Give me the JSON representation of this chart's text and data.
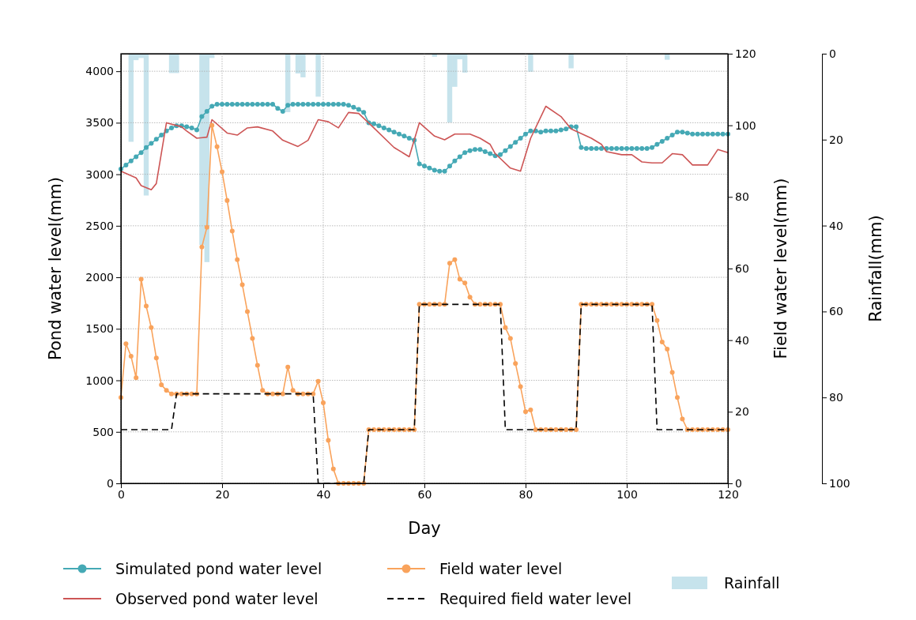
{
  "chart_data": [
    {
      "type": "line",
      "xlabel": "Day",
      "ylabel": "Pond water level(mm)",
      "y2label": "Field water level(mm)",
      "xlim": [
        0,
        120
      ],
      "xticks": [
        0,
        20,
        40,
        60,
        80,
        100,
        120
      ],
      "ylim": [
        0,
        4170
      ],
      "yticks": [
        0,
        500,
        1000,
        1500,
        2000,
        2500,
        3000,
        3500,
        4000
      ],
      "y2lim": [
        0,
        120
      ],
      "y2ticks": [
        0,
        20,
        40,
        60,
        80,
        100,
        120
      ],
      "grid": true,
      "legend": "bottom",
      "series": [
        {
          "name": "Simulated pond water level",
          "color": "#45a9b5",
          "marker": "circle",
          "x": [
            0,
            1,
            2,
            3,
            4,
            5,
            6,
            7,
            8,
            9,
            10,
            11,
            12,
            13,
            14,
            15,
            16,
            17,
            18,
            19,
            20,
            21,
            22,
            23,
            24,
            25,
            26,
            27,
            28,
            29,
            30,
            31,
            32,
            33,
            34,
            35,
            36,
            37,
            38,
            39,
            40,
            41,
            42,
            43,
            44,
            45,
            46,
            47,
            48,
            49,
            50,
            51,
            52,
            53,
            54,
            55,
            56,
            57,
            58,
            59,
            60,
            61,
            62,
            63,
            64,
            65,
            66,
            67,
            68,
            69,
            70,
            71,
            72,
            73,
            74,
            75,
            76,
            77,
            78,
            79,
            80,
            81,
            82,
            83,
            84,
            85,
            86,
            87,
            88,
            89,
            90,
            91,
            92,
            93,
            94,
            95,
            96,
            97,
            98,
            99,
            100,
            101,
            102,
            103,
            104,
            105,
            106,
            107,
            108,
            109,
            110,
            111,
            112,
            113,
            114,
            115,
            116,
            117,
            118,
            119,
            120
          ],
          "values": [
            3050,
            3090,
            3130,
            3170,
            3210,
            3260,
            3300,
            3340,
            3380,
            3420,
            3450,
            3470,
            3470,
            3460,
            3450,
            3430,
            3560,
            3610,
            3660,
            3680,
            3680,
            3680,
            3680,
            3680,
            3680,
            3680,
            3680,
            3680,
            3680,
            3680,
            3680,
            3640,
            3610,
            3670,
            3680,
            3680,
            3680,
            3680,
            3680,
            3680,
            3680,
            3680,
            3680,
            3680,
            3680,
            3670,
            3650,
            3630,
            3600,
            3500,
            3490,
            3470,
            3450,
            3430,
            3410,
            3390,
            3370,
            3350,
            3330,
            3100,
            3080,
            3060,
            3040,
            3030,
            3030,
            3080,
            3130,
            3170,
            3210,
            3230,
            3240,
            3240,
            3220,
            3200,
            3180,
            3190,
            3230,
            3270,
            3310,
            3350,
            3390,
            3420,
            3420,
            3410,
            3420,
            3420,
            3420,
            3430,
            3440,
            3460,
            3460,
            3260,
            3250,
            3250,
            3250,
            3250,
            3250,
            3250,
            3250,
            3250,
            3250,
            3250,
            3250,
            3250,
            3250,
            3260,
            3290,
            3320,
            3350,
            3380,
            3410,
            3410,
            3400,
            3390,
            3390,
            3390,
            3390,
            3390,
            3390,
            3390,
            3390
          ]
        },
        {
          "name": "Observed pond water level",
          "color": "#cd5555",
          "x": [
            0,
            3,
            4,
            6,
            7,
            9,
            12,
            13,
            15,
            17,
            18,
            21,
            23,
            25,
            27,
            30,
            32,
            35,
            37,
            39,
            41,
            43,
            45,
            47,
            50,
            54,
            57,
            59,
            62,
            64,
            66,
            69,
            71,
            73,
            74,
            77,
            79,
            81,
            84,
            87,
            89,
            93,
            95,
            96,
            99,
            101,
            103,
            105,
            107,
            109,
            111,
            113,
            116,
            118,
            120
          ],
          "values": [
            3030,
            2965,
            2890,
            2850,
            2910,
            3500,
            3460,
            3420,
            3350,
            3360,
            3530,
            3400,
            3380,
            3450,
            3460,
            3420,
            3330,
            3270,
            3330,
            3530,
            3510,
            3450,
            3600,
            3590,
            3450,
            3260,
            3170,
            3500,
            3370,
            3335,
            3390,
            3390,
            3350,
            3290,
            3200,
            3060,
            3030,
            3350,
            3660,
            3560,
            3440,
            3350,
            3290,
            3220,
            3190,
            3190,
            3120,
            3110,
            3110,
            3200,
            3190,
            3090,
            3090,
            3240,
            3210
          ]
        },
        {
          "name": "Field water level",
          "axis": "y2",
          "color": "#f9a35c",
          "marker": "circle",
          "x": [
            0,
            1,
            2,
            3,
            4,
            5,
            6,
            7,
            8,
            9,
            10,
            11,
            12,
            13,
            14,
            15,
            16,
            17,
            18,
            19,
            20,
            21,
            22,
            23,
            24,
            25,
            26,
            27,
            28,
            29,
            30,
            31,
            32,
            33,
            34,
            35,
            36,
            37,
            38,
            39,
            40,
            41,
            42,
            43,
            44,
            45,
            46,
            47,
            48,
            49,
            50,
            51,
            52,
            53,
            54,
            55,
            56,
            57,
            58,
            59,
            60,
            61,
            62,
            63,
            64,
            65,
            66,
            67,
            68,
            69,
            70,
            71,
            72,
            73,
            74,
            75,
            76,
            77,
            78,
            79,
            80,
            81,
            82,
            83,
            84,
            85,
            86,
            87,
            88,
            89,
            90,
            91,
            92,
            93,
            94,
            95,
            96,
            97,
            98,
            99,
            100,
            101,
            102,
            103,
            104,
            105,
            106,
            107,
            108,
            109,
            110,
            111,
            112,
            113,
            114,
            115,
            116,
            117,
            118,
            119,
            120
          ],
          "values": [
            24,
            39,
            35.5,
            29.5,
            57,
            49.5,
            43.5,
            35,
            27.5,
            26,
            25,
            25,
            25,
            25,
            25,
            25,
            66,
            71.5,
            100,
            94,
            87,
            79,
            70.5,
            62.5,
            55.5,
            48,
            40.5,
            33,
            26,
            25,
            25,
            25,
            25,
            32.5,
            26,
            25,
            25,
            25,
            25,
            28.5,
            22.5,
            12,
            4,
            0,
            0,
            0,
            0,
            0,
            0,
            15,
            15,
            15,
            15,
            15,
            15,
            15,
            15,
            15,
            15,
            50,
            50,
            50,
            50,
            50,
            50,
            61.5,
            62.5,
            57,
            56,
            52,
            50,
            50,
            50,
            50,
            50,
            50,
            43.5,
            40.5,
            33.5,
            27,
            20,
            20.5,
            15,
            15,
            15,
            15,
            15,
            15,
            15,
            15,
            15,
            50,
            50,
            50,
            50,
            50,
            50,
            50,
            50,
            50,
            50,
            50,
            50,
            50,
            50,
            50,
            45.5,
            39.5,
            37.5,
            31,
            24,
            18,
            15,
            15,
            15,
            15,
            15,
            15,
            15,
            15,
            15
          ]
        },
        {
          "name": "Required field water level",
          "axis": "y2",
          "color": "#000000",
          "line_style": "dashed",
          "x": [
            0,
            10,
            11,
            38,
            39,
            48,
            49,
            58,
            59,
            75,
            76,
            90,
            91,
            105,
            106,
            120
          ],
          "values": [
            15,
            15,
            25,
            25,
            0,
            0,
            15,
            15,
            50,
            50,
            15,
            15,
            50,
            50,
            15,
            15
          ]
        }
      ]
    },
    {
      "type": "bar",
      "ylabel": "Rainfall(mm)",
      "xlim": [
        0,
        120
      ],
      "ylim": [
        100,
        0
      ],
      "yticks": [
        0,
        20,
        40,
        60,
        80,
        100
      ],
      "tick_labels": "y",
      "legend": "bottom right",
      "series": [
        {
          "name": "Rainfall",
          "color": "#c6e3ec",
          "x": [
            2,
            3,
            4,
            5,
            10,
            11,
            16,
            17,
            18,
            33,
            35,
            36,
            39,
            62,
            65,
            66,
            67,
            68,
            81,
            89,
            108
          ],
          "values": [
            20.5,
            1.5,
            1,
            33,
            4.5,
            4.5,
            44.5,
            48.5,
            1,
            13.6,
            4.6,
            5.5,
            10,
            0.7,
            16,
            7.7,
            1.3,
            4.4,
            4.2,
            3.4,
            1.4
          ]
        }
      ]
    }
  ]
}
